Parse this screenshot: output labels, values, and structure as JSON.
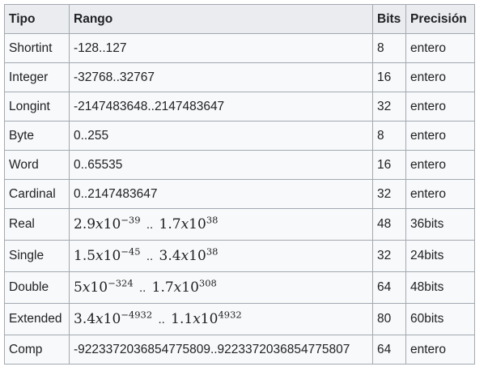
{
  "table": {
    "headers": {
      "tipo": "Tipo",
      "rango": "Rango",
      "bits": "Bits",
      "precision": "Precisión"
    },
    "rows": [
      {
        "tipo": "Shortint",
        "rango": "-128..127",
        "bits": "8",
        "precision": "entero"
      },
      {
        "tipo": "Integer",
        "rango": "-32768..32767",
        "bits": "16",
        "precision": "entero"
      },
      {
        "tipo": "Longint",
        "rango": "-2147483648..2147483647",
        "bits": "32",
        "precision": "entero"
      },
      {
        "tipo": "Byte",
        "rango": "0..255",
        "bits": "8",
        "precision": "entero"
      },
      {
        "tipo": "Word",
        "rango": "0..65535",
        "bits": "16",
        "precision": "entero"
      },
      {
        "tipo": "Cardinal",
        "rango": "0..2147483647",
        "bits": "32",
        "precision": "entero"
      },
      {
        "tipo": "Real",
        "rango_min": {
          "mant": "2.9",
          "exp": "−39"
        },
        "sep": "..",
        "rango_max": {
          "mant": "1.7",
          "exp": "38"
        },
        "bits": "48",
        "precision": "36bits"
      },
      {
        "tipo": "Single",
        "rango_min": {
          "mant": "1.5",
          "exp": "−45"
        },
        "sep": "..",
        "rango_max": {
          "mant": "3.4",
          "exp": "38"
        },
        "bits": "32",
        "precision": "24bits"
      },
      {
        "tipo": "Double",
        "rango_min": {
          "mant": "5",
          "exp": "−324"
        },
        "sep": "..",
        "rango_max": {
          "mant": "1.7",
          "exp": "308"
        },
        "bits": "64",
        "precision": "48bits"
      },
      {
        "tipo": "Extended",
        "rango_min": {
          "mant": "3.4",
          "exp": "−4932"
        },
        "sep": "..",
        "rango_max": {
          "mant": "1.1",
          "exp": "4932"
        },
        "bits": "80",
        "precision": "60bits"
      },
      {
        "tipo": "Comp",
        "rango": "-9223372036854775809..9223372036854775807",
        "bits": "64",
        "precision": "entero"
      }
    ],
    "math": {
      "times": "x",
      "base": "10"
    }
  }
}
